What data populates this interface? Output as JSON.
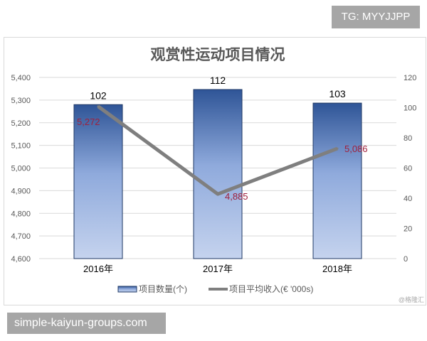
{
  "badges": {
    "tg": "TG: MYYJJPP",
    "site": "simple-kaiyun-groups.com"
  },
  "chart_data": {
    "type": "bar+line",
    "title": "观赏性运动项目情况",
    "categories": [
      "2016年",
      "2017年",
      "2018年"
    ],
    "series": [
      {
        "name": "项目数量(个)",
        "type": "bar",
        "axis": "right",
        "values": [
          102,
          112,
          103
        ],
        "labels": [
          "102",
          "112",
          "103"
        ],
        "color": "#4a72b8"
      },
      {
        "name": "项目平均收入(€ '000s)",
        "type": "line",
        "axis": "left",
        "values": [
          5272,
          4885,
          5086
        ],
        "labels": [
          "5,272",
          "4,885",
          "5,086"
        ],
        "color": "#7f7f7f",
        "label_color": "#a0203c"
      }
    ],
    "left_axis": {
      "ylim": [
        4600,
        5400
      ],
      "ticks": [
        "4,600",
        "4,700",
        "4,800",
        "4,900",
        "5,000",
        "5,100",
        "5,200",
        "5,300",
        "5,400"
      ]
    },
    "right_axis": {
      "ylim": [
        0,
        120
      ],
      "ticks": [
        "0",
        "20",
        "40",
        "60",
        "80",
        "100",
        "120"
      ]
    },
    "grid": true,
    "legend": "bottom",
    "watermark": "@格隆汇"
  }
}
